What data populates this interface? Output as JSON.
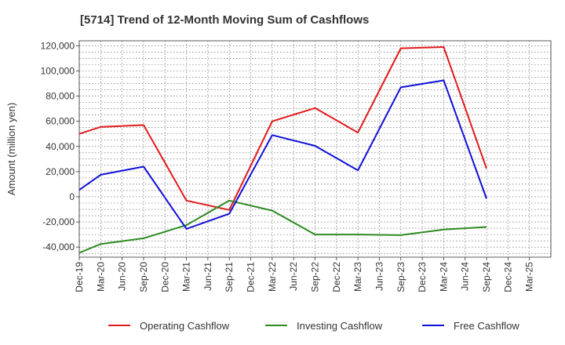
{
  "chart_data": {
    "type": "line",
    "title": "[5714]  Trend of 12-Month Moving Sum of Cashflows",
    "xlabel": "",
    "ylabel": "Amount (million yen)",
    "ylim": [
      -48000,
      124000
    ],
    "yticks": [
      -40000,
      -20000,
      0,
      20000,
      40000,
      60000,
      80000,
      100000,
      120000
    ],
    "ytick_labels": [
      "-40,000",
      "-20,000",
      "0",
      "20,000",
      "40,000",
      "60,000",
      "80,000",
      "100,000",
      "120,000"
    ],
    "categories": [
      "Dec-19",
      "Mar-20",
      "Jun-20",
      "Sep-20",
      "Dec-20",
      "Mar-21",
      "Jun-21",
      "Sep-21",
      "Dec-21",
      "Mar-22",
      "Jun-22",
      "Sep-22",
      "Dec-22",
      "Mar-23",
      "Jun-23",
      "Sep-23",
      "Dec-23",
      "Mar-24",
      "Jun-24",
      "Sep-24",
      "Dec-24",
      "Mar-25"
    ],
    "grid": true,
    "legend": "bottom",
    "series": [
      {
        "name": "Operating Cashflow",
        "color": "#e31a1c",
        "values": [
          50000,
          55500,
          null,
          57000,
          null,
          -3000,
          null,
          -10500,
          null,
          60000,
          null,
          70500,
          null,
          51000,
          null,
          118000,
          null,
          119000,
          null,
          22500,
          null,
          null
        ]
      },
      {
        "name": "Investing Cashflow",
        "color": "#2e8b22",
        "values": [
          -44500,
          -37500,
          null,
          -33000,
          null,
          -22500,
          null,
          -3000,
          null,
          -11000,
          null,
          -30000,
          null,
          -30000,
          null,
          -30500,
          null,
          -26000,
          null,
          -24000,
          null,
          null
        ]
      },
      {
        "name": "Free Cashflow",
        "color": "#1010d8",
        "values": [
          5500,
          17500,
          null,
          24000,
          null,
          -25500,
          null,
          -13500,
          null,
          49000,
          null,
          40500,
          null,
          21000,
          null,
          87000,
          null,
          92500,
          null,
          -1500,
          null,
          null
        ]
      }
    ]
  }
}
